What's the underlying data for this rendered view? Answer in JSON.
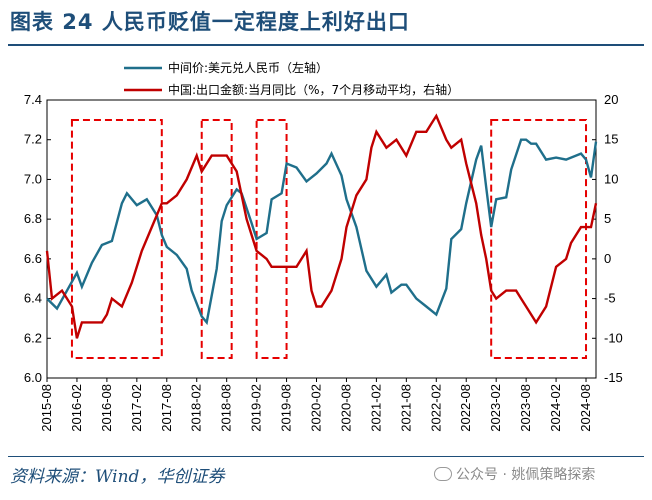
{
  "title": "图表 24   人民币贬值一定程度上利好出口",
  "source": "资料来源：Wind，华创证券",
  "watermark": "公众号 · 姚佩策略探索",
  "colors": {
    "title": "#1e4e79",
    "blue": "#1f6f8b",
    "red": "#c00000",
    "box": "#e60000"
  },
  "chart_data": {
    "type": "line",
    "x_range": [
      "2015-08",
      "2024-10"
    ],
    "x_ticks": [
      "2015-08",
      "2016-02",
      "2016-08",
      "2017-02",
      "2017-08",
      "2018-02",
      "2018-08",
      "2019-02",
      "2019-08",
      "2020-02",
      "2020-08",
      "2021-02",
      "2021-08",
      "2022-02",
      "2022-08",
      "2023-02",
      "2023-08",
      "2024-02",
      "2024-08"
    ],
    "left_axis": {
      "ylim": [
        6.0,
        7.4
      ],
      "ticks": [
        "6.0",
        "6.2",
        "6.4",
        "6.6",
        "6.8",
        "7.0",
        "7.2",
        "7.4"
      ]
    },
    "right_axis": {
      "ylim": [
        -15,
        20
      ],
      "ticks": [
        "-15",
        "-10",
        "-5",
        "0",
        "5",
        "10",
        "15",
        "20"
      ]
    },
    "series": [
      {
        "name": "中间价:美元兑人民币（左轴）",
        "axis": "left",
        "color": "#1f6f8b",
        "points": [
          [
            "2015-08",
            6.4
          ],
          [
            "2015-10",
            6.35
          ],
          [
            "2015-12",
            6.44
          ],
          [
            "2016-02",
            6.53
          ],
          [
            "2016-03",
            6.46
          ],
          [
            "2016-05",
            6.58
          ],
          [
            "2016-07",
            6.67
          ],
          [
            "2016-09",
            6.69
          ],
          [
            "2016-11",
            6.88
          ],
          [
            "2016-12",
            6.93
          ],
          [
            "2017-02",
            6.87
          ],
          [
            "2017-04",
            6.9
          ],
          [
            "2017-06",
            6.82
          ],
          [
            "2017-07",
            6.72
          ],
          [
            "2017-08",
            6.66
          ],
          [
            "2017-10",
            6.62
          ],
          [
            "2017-12",
            6.55
          ],
          [
            "2018-01",
            6.44
          ],
          [
            "2018-03",
            6.31
          ],
          [
            "2018-04",
            6.28
          ],
          [
            "2018-06",
            6.55
          ],
          [
            "2018-07",
            6.79
          ],
          [
            "2018-08",
            6.87
          ],
          [
            "2018-10",
            6.95
          ],
          [
            "2018-11",
            6.93
          ],
          [
            "2019-01",
            6.78
          ],
          [
            "2019-02",
            6.7
          ],
          [
            "2019-04",
            6.73
          ],
          [
            "2019-05",
            6.9
          ],
          [
            "2019-07",
            6.93
          ],
          [
            "2019-08",
            7.08
          ],
          [
            "2019-10",
            7.06
          ],
          [
            "2019-12",
            6.99
          ],
          [
            "2020-02",
            7.03
          ],
          [
            "2020-04",
            7.08
          ],
          [
            "2020-05",
            7.13
          ],
          [
            "2020-07",
            7.02
          ],
          [
            "2020-08",
            6.9
          ],
          [
            "2020-10",
            6.76
          ],
          [
            "2020-12",
            6.54
          ],
          [
            "2021-02",
            6.46
          ],
          [
            "2021-04",
            6.52
          ],
          [
            "2021-05",
            6.43
          ],
          [
            "2021-07",
            6.47
          ],
          [
            "2021-08",
            6.47
          ],
          [
            "2021-10",
            6.4
          ],
          [
            "2021-12",
            6.36
          ],
          [
            "2022-02",
            6.32
          ],
          [
            "2022-04",
            6.45
          ],
          [
            "2022-05",
            6.7
          ],
          [
            "2022-07",
            6.75
          ],
          [
            "2022-08",
            6.88
          ],
          [
            "2022-10",
            7.1
          ],
          [
            "2022-11",
            7.17
          ],
          [
            "2022-12",
            6.96
          ],
          [
            "2023-01",
            6.76
          ],
          [
            "2023-02",
            6.9
          ],
          [
            "2023-04",
            6.91
          ],
          [
            "2023-05",
            7.05
          ],
          [
            "2023-07",
            7.2
          ],
          [
            "2023-08",
            7.2
          ],
          [
            "2023-09",
            7.18
          ],
          [
            "2023-10",
            7.18
          ],
          [
            "2023-12",
            7.1
          ],
          [
            "2024-02",
            7.11
          ],
          [
            "2024-04",
            7.1
          ],
          [
            "2024-06",
            7.12
          ],
          [
            "2024-07",
            7.13
          ],
          [
            "2024-08",
            7.1
          ],
          [
            "2024-09",
            7.01
          ],
          [
            "2024-10",
            7.19
          ]
        ]
      },
      {
        "name": "中国:出口金额:当月同比（%，7个月移动平均，右轴）",
        "axis": "right",
        "color": "#c00000",
        "points": [
          [
            "2015-08",
            1
          ],
          [
            "2015-09",
            -5
          ],
          [
            "2015-11",
            -4
          ],
          [
            "2016-01",
            -6
          ],
          [
            "2016-02",
            -10
          ],
          [
            "2016-03",
            -8
          ],
          [
            "2016-05",
            -8
          ],
          [
            "2016-07",
            -8
          ],
          [
            "2016-08",
            -7
          ],
          [
            "2016-09",
            -5
          ],
          [
            "2016-11",
            -6
          ],
          [
            "2017-01",
            -3
          ],
          [
            "2017-03",
            1
          ],
          [
            "2017-05",
            4
          ],
          [
            "2017-07",
            7
          ],
          [
            "2017-08",
            7
          ],
          [
            "2017-10",
            8
          ],
          [
            "2017-12",
            10
          ],
          [
            "2018-02",
            13
          ],
          [
            "2018-03",
            11
          ],
          [
            "2018-05",
            13
          ],
          [
            "2018-07",
            13
          ],
          [
            "2018-08",
            13
          ],
          [
            "2018-10",
            11
          ],
          [
            "2018-12",
            5
          ],
          [
            "2019-01",
            3
          ],
          [
            "2019-02",
            1
          ],
          [
            "2019-04",
            0
          ],
          [
            "2019-05",
            -1
          ],
          [
            "2019-07",
            -1
          ],
          [
            "2019-08",
            -1
          ],
          [
            "2019-10",
            -1
          ],
          [
            "2019-12",
            1
          ],
          [
            "2020-01",
            -4
          ],
          [
            "2020-02",
            -6
          ],
          [
            "2020-03",
            -6
          ],
          [
            "2020-05",
            -4
          ],
          [
            "2020-07",
            0
          ],
          [
            "2020-08",
            4
          ],
          [
            "2020-10",
            8
          ],
          [
            "2020-12",
            10
          ],
          [
            "2021-01",
            14
          ],
          [
            "2021-02",
            16
          ],
          [
            "2021-04",
            14
          ],
          [
            "2021-06",
            15
          ],
          [
            "2021-08",
            13
          ],
          [
            "2021-10",
            16
          ],
          [
            "2021-12",
            16
          ],
          [
            "2022-01",
            17
          ],
          [
            "2022-02",
            18
          ],
          [
            "2022-04",
            15
          ],
          [
            "2022-05",
            14
          ],
          [
            "2022-07",
            15
          ],
          [
            "2022-08",
            12
          ],
          [
            "2022-10",
            7
          ],
          [
            "2022-11",
            3
          ],
          [
            "2022-12",
            0
          ],
          [
            "2023-01",
            -4
          ],
          [
            "2023-02",
            -5
          ],
          [
            "2023-04",
            -4
          ],
          [
            "2023-06",
            -4
          ],
          [
            "2023-07",
            -5
          ],
          [
            "2023-08",
            -6
          ],
          [
            "2023-10",
            -8
          ],
          [
            "2023-12",
            -6
          ],
          [
            "2024-02",
            -1
          ],
          [
            "2024-04",
            0
          ],
          [
            "2024-05",
            2
          ],
          [
            "2024-06",
            3
          ],
          [
            "2024-07",
            4
          ],
          [
            "2024-08",
            4
          ],
          [
            "2024-09",
            4
          ],
          [
            "2024-10",
            7
          ]
        ]
      }
    ],
    "highlight_boxes": [
      {
        "from": "2016-01",
        "to": "2017-07"
      },
      {
        "from": "2018-03",
        "to": "2018-09"
      },
      {
        "from": "2019-02",
        "to": "2019-08"
      },
      {
        "from": "2023-01",
        "to": "2024-08"
      }
    ]
  }
}
